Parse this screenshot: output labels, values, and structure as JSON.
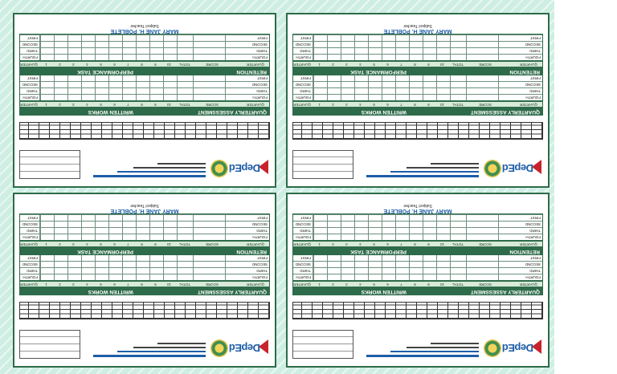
{
  "cards": [
    {
      "teacher_name": "MARY JANE H. POBLETE",
      "teacher_role": "Subject Teacher"
    },
    {
      "teacher_name": "MARY JANE H. POBLETE",
      "teacher_role": "Subject Teacher"
    },
    {
      "teacher_name": "MARY JANE H. POBLETE",
      "teacher_role": "Subject Teacher"
    },
    {
      "teacher_name": "MARY JANE H. POBLETE",
      "teacher_role": "Subject Teacher"
    }
  ],
  "labels": {
    "written_works": "WRITTEN WORKS",
    "quarterly_assessment": "QUARTERLY ASSESSMENT",
    "performance_task": "PERFORMANCE TASK",
    "retention": "RETENTION",
    "quarter": "QUARTER",
    "score": "SCORE",
    "total": "TOTAL",
    "logo_text": "DepEd",
    "item_numbers": [
      "1",
      "2",
      "3",
      "4",
      "5",
      "6",
      "7",
      "8",
      "9",
      "10"
    ],
    "quarters": [
      "FIRST",
      "SECOND",
      "THIRD",
      "FOURTH"
    ]
  },
  "colors": {
    "frame": "#2e6b4a",
    "header": "#2e6b4a",
    "accent_blue": "#1d5ea8",
    "background": "#cfeee3"
  }
}
